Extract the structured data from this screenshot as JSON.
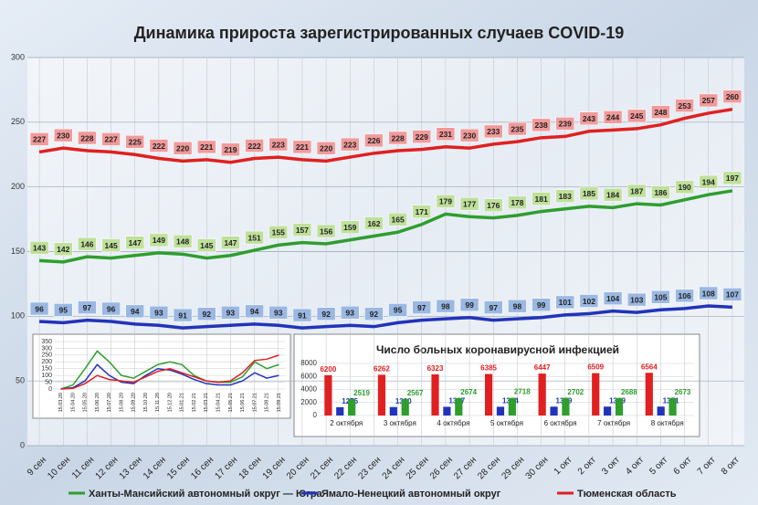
{
  "chart_data": [
    {
      "type": "line",
      "title": "Динамика прироста зарегистрированных случаев COVID-19",
      "categories": [
        "9 сен",
        "10 сен",
        "11 сен",
        "12 сен",
        "13 сен",
        "14 сен",
        "15 сен",
        "16 сен",
        "17 сен",
        "18 сен",
        "19 сен",
        "20 сен",
        "21 сен",
        "22 сен",
        "23 сен",
        "24 сен",
        "25 сен",
        "26 сен",
        "27 сен",
        "28 сен",
        "29 сен",
        "30 сен",
        "1 окт",
        "2 окт",
        "3 окт",
        "4 окт",
        "5 окт",
        "6 окт",
        "7 окт",
        "8 окт"
      ],
      "series": [
        {
          "name": "Ханты-Мансийский автономный округ — Югра",
          "color": "#2e9e2e",
          "values": [
            143,
            142,
            146,
            145,
            147,
            149,
            148,
            145,
            147,
            151,
            155,
            157,
            156,
            159,
            162,
            165,
            171,
            179,
            177,
            176,
            178,
            181,
            183,
            185,
            184,
            187,
            186,
            190,
            194,
            197
          ]
        },
        {
          "name": "Ямало-Ненецкий автономный округ",
          "color": "#2233bb",
          "values": [
            96,
            95,
            97,
            96,
            94,
            93,
            91,
            92,
            93,
            94,
            93,
            91,
            92,
            93,
            92,
            95,
            97,
            98,
            99,
            97,
            98,
            99,
            101,
            102,
            104,
            103,
            105,
            106,
            108,
            107
          ]
        },
        {
          "name": "Тюменская область",
          "color": "#e02020",
          "values": [
            227,
            230,
            228,
            227,
            225,
            222,
            220,
            221,
            219,
            222,
            223,
            221,
            220,
            223,
            226,
            228,
            229,
            231,
            230,
            233,
            235,
            238,
            239,
            243,
            244,
            245,
            248,
            253,
            257,
            260
          ]
        }
      ],
      "ylim": [
        0,
        300
      ],
      "yticks": [
        0,
        50,
        100,
        150,
        200,
        250,
        300
      ],
      "grid": true
    },
    {
      "type": "bar",
      "title": "Число больных коронавирусной инфекцией",
      "categories": [
        "2 октября",
        "3 октября",
        "4 октября",
        "5 октября",
        "6 октября",
        "7 октября",
        "8 октября"
      ],
      "series": [
        {
          "color": "#e02020",
          "values": [
            6200,
            6262,
            6323,
            6385,
            6447,
            6509,
            6564
          ]
        },
        {
          "color": "#2233bb",
          "values": [
            1275,
            1300,
            1337,
            1344,
            1359,
            1369,
            1371
          ]
        },
        {
          "color": "#2e9e2e",
          "values": [
            2519,
            2567,
            2674,
            2718,
            2702,
            2688,
            2673
          ]
        }
      ],
      "ylim": [
        0,
        8000
      ],
      "yticks": [
        0,
        2000,
        4000,
        6000,
        8000
      ]
    },
    {
      "type": "line",
      "categories": [
        "15.03.20",
        "15.04.20",
        "15.05.20",
        "15.06.20",
        "15.07.20",
        "15.08.20",
        "15.09.20",
        "15.10.20",
        "15.11.20",
        "15.12.20",
        "15.01.21",
        "15.02.21",
        "15.03.21",
        "15.04.21",
        "15.05.21",
        "15.06.21",
        "15.07.21",
        "15.08.21",
        "15.09.21"
      ],
      "series": [
        {
          "color": "#2e9e2e",
          "values": [
            0,
            30,
            150,
            280,
            200,
            100,
            80,
            130,
            180,
            200,
            180,
            100,
            60,
            50,
            50,
            90,
            200,
            150,
            180
          ]
        },
        {
          "color": "#2233bb",
          "values": [
            0,
            10,
            60,
            180,
            100,
            50,
            40,
            100,
            150,
            140,
            110,
            70,
            40,
            30,
            30,
            60,
            120,
            80,
            100
          ]
        },
        {
          "color": "#e02020",
          "values": [
            0,
            5,
            40,
            100,
            70,
            60,
            50,
            90,
            130,
            150,
            120,
            90,
            60,
            50,
            60,
            120,
            210,
            220,
            250
          ]
        }
      ],
      "ylim": [
        0,
        350
      ],
      "yticks": [
        0,
        50,
        100,
        150,
        200,
        250,
        300,
        350
      ]
    }
  ]
}
